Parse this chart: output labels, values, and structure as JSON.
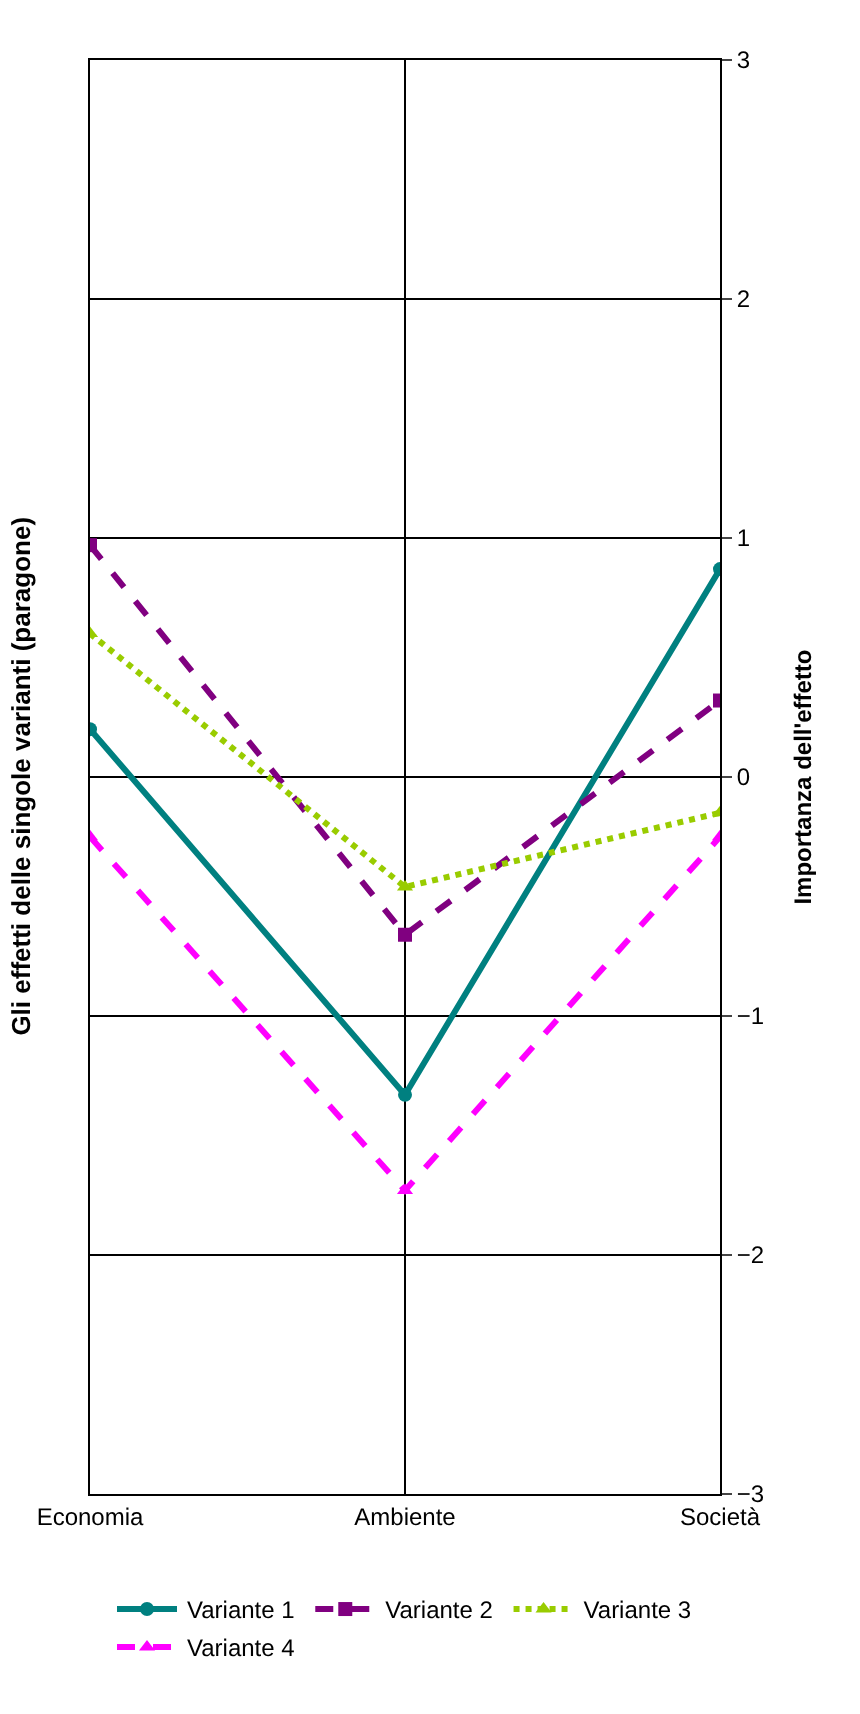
{
  "chart_data": {
    "type": "line",
    "title": "Gli effetti delle singole varianti (paragone)",
    "ylabel": "Importanza dell'effetto",
    "categories": [
      "Economia",
      "Ambiente",
      "Società"
    ],
    "series": [
      {
        "name": "Variante 1",
        "color": "#008080",
        "values": [
          0.2,
          -1.33,
          0.87
        ],
        "marker": "circle",
        "line_style": "solid"
      },
      {
        "name": "Variante 2",
        "color": "#800080",
        "values": [
          0.97,
          -0.66,
          0.32
        ],
        "marker": "square",
        "line_style": "dashed"
      },
      {
        "name": "Variante 3",
        "color": "#99cc00",
        "values": [
          0.6,
          -0.46,
          -0.15
        ],
        "marker": "triangle",
        "line_style": "dotted"
      },
      {
        "name": "Variante 4",
        "color": "#ff00ff",
        "values": [
          -0.25,
          -1.73,
          -0.25
        ],
        "marker": "triangle",
        "line_style": "dashed"
      }
    ],
    "ylim": [
      -3,
      3
    ],
    "yticks": [
      -3,
      -2,
      -1,
      0,
      1,
      2,
      3
    ],
    "grid": true,
    "legend": "bottom"
  }
}
